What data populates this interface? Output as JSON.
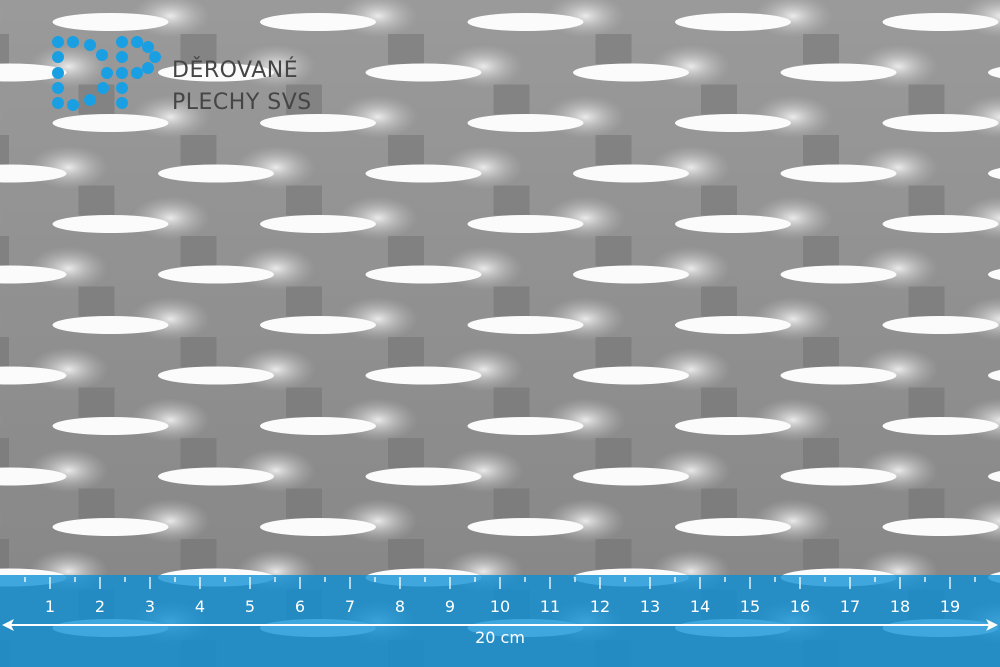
{
  "logo": {
    "line1": "DĚROVANÉ",
    "line2": "PLECHY SVS",
    "mark_letters": "DP",
    "color": "#1a9fe3"
  },
  "ruler": {
    "labels": [
      "1",
      "2",
      "3",
      "4",
      "5",
      "6",
      "7",
      "8",
      "9",
      "10",
      "11",
      "12",
      "13",
      "14",
      "15",
      "16",
      "17",
      "18",
      "19"
    ],
    "length_label": "20 cm",
    "overlay_color": "#0a8fd6"
  },
  "photo": {
    "subject": "expanded metal mesh",
    "base_color": "#8e8e8e"
  }
}
